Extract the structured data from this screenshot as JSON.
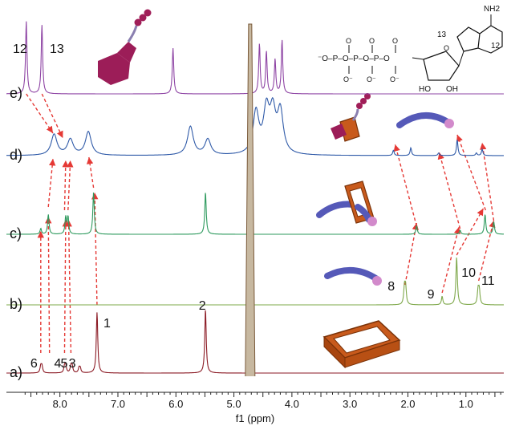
{
  "chart_data": {
    "type": "line",
    "xlabel": "f1 (ppm)",
    "x_reversed": true,
    "xlim": [
      8.85,
      0.15
    ],
    "x_ticks": [
      "8.0",
      "7.0",
      "6.0",
      "5.0",
      "4.0",
      "3.0",
      "2.0",
      "1.0"
    ],
    "series": [
      {
        "name": "a)",
        "color": "#8b1a24",
        "peaks": [
          {
            "x": 8.33,
            "h": 0.1,
            "label": "6"
          },
          {
            "x": 8.31,
            "h": 0.1
          },
          {
            "x": 7.92,
            "h": 0.1,
            "label": "4"
          },
          {
            "x": 7.9,
            "h": 0.1
          },
          {
            "x": 7.81,
            "h": 0.1,
            "label": "5"
          },
          {
            "x": 7.79,
            "h": 0.1
          },
          {
            "x": 7.67,
            "h": 0.07,
            "label": "3"
          },
          {
            "x": 7.65,
            "h": 0.07
          },
          {
            "x": 7.36,
            "h": 0.9,
            "label": "1"
          },
          {
            "x": 5.49,
            "h": 0.95,
            "label": "2"
          }
        ]
      },
      {
        "name": "b)",
        "color": "#7ea84a",
        "peaks": [
          {
            "x": 2.06,
            "h": 0.3,
            "label": "8"
          },
          {
            "x": 2.04,
            "h": 0.3
          },
          {
            "x": 1.41,
            "h": 0.15,
            "label": "9"
          },
          {
            "x": 1.16,
            "h": 0.85,
            "label": "10"
          },
          {
            "x": 0.79,
            "h": 0.25,
            "label": "11"
          },
          {
            "x": 0.77,
            "h": 0.25
          }
        ]
      },
      {
        "name": "c)",
        "color": "#2e9a5e",
        "peaks": [
          {
            "x": 8.33,
            "h": 0.1
          },
          {
            "x": 8.2,
            "h": 0.35
          },
          {
            "x": 7.9,
            "h": 0.3
          },
          {
            "x": 7.86,
            "h": 0.3
          },
          {
            "x": 7.42,
            "h": 0.75
          },
          {
            "x": 5.49,
            "h": 0.75
          },
          {
            "x": 1.85,
            "h": 0.15
          },
          {
            "x": 1.1,
            "h": 0.07
          },
          {
            "x": 0.67,
            "h": 0.35
          },
          {
            "x": 0.52,
            "h": 0.22
          }
        ]
      },
      {
        "name": "d)",
        "color": "#2f5aa8",
        "peaks": [
          {
            "x": 8.1,
            "h": 0.4
          },
          {
            "x": 7.82,
            "h": 0.3
          },
          {
            "x": 7.51,
            "h": 0.45
          },
          {
            "x": 5.75,
            "h": 0.55
          },
          {
            "x": 5.45,
            "h": 0.3
          },
          {
            "x": 4.62,
            "h": 0.8
          },
          {
            "x": 4.44,
            "h": 0.8
          },
          {
            "x": 4.33,
            "h": 0.75
          },
          {
            "x": 4.2,
            "h": 0.8
          },
          {
            "x": 2.25,
            "h": 0.1
          },
          {
            "x": 1.95,
            "h": 0.15
          },
          {
            "x": 1.47,
            "h": 0.05
          },
          {
            "x": 1.15,
            "h": 0.3
          },
          {
            "x": 0.82,
            "h": 0.05
          },
          {
            "x": 0.72,
            "h": 0.12
          }
        ]
      },
      {
        "name": "e)",
        "color": "#8e44a4",
        "peaks": [
          {
            "x": 8.58,
            "h": 0.95,
            "label": "12"
          },
          {
            "x": 8.31,
            "h": 0.9,
            "label": "13"
          },
          {
            "x": 6.05,
            "h": 0.6
          },
          {
            "x": 4.56,
            "h": 0.65
          },
          {
            "x": 4.44,
            "h": 0.55
          },
          {
            "x": 4.29,
            "h": 0.45
          },
          {
            "x": 4.17,
            "h": 0.7
          }
        ]
      }
    ],
    "solvent_peak": {
      "x": 4.72
    },
    "annotations": {
      "adenine_labels": [
        "NH2",
        "13",
        "12"
      ],
      "phosphate_text": "⁻O–P–O–P–O–P–O",
      "ribose_labels": [
        "HO",
        "OH"
      ],
      "oxygen_labels": [
        "O",
        "O",
        "O",
        "O⁻",
        "O⁻",
        "O⁻",
        "O"
      ]
    }
  },
  "colors": {
    "arrow": "#e53935",
    "ring_orange": "#c85a1c",
    "ring_dark": "#7a3208",
    "guest_blue": "#5559b8",
    "guest_pink": "#d28acb",
    "chain_magenta": "#a01e58",
    "ring_magenta": "#9c1d58"
  }
}
